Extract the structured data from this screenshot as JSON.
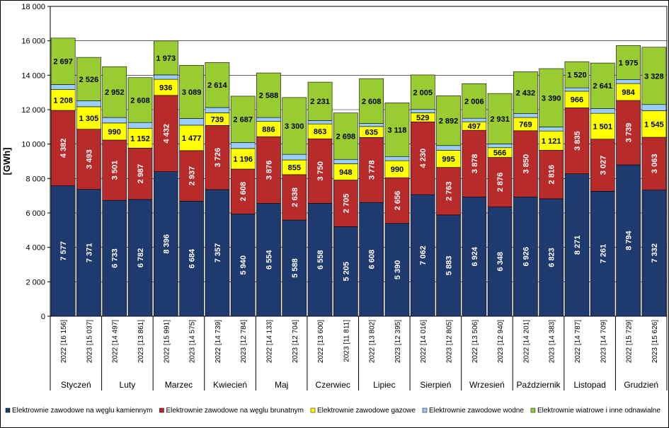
{
  "chart_data": {
    "type": "bar",
    "stacked": true,
    "ylabel": "[GWh]",
    "ylim": [
      0,
      18000
    ],
    "yticks": [
      "0",
      "2 000",
      "4 000",
      "6 000",
      "8 000",
      "10 000",
      "12 000",
      "14 000",
      "16 000",
      "18 000"
    ],
    "grid": true,
    "legend_position": "bottom",
    "months": [
      "Styczeń",
      "Luty",
      "Marzec",
      "Kwiecień",
      "Maj",
      "Czerwiec",
      "Lipiec",
      "Sierpień",
      "Wrzesień",
      "Październik",
      "Listopad",
      "Grudzień"
    ],
    "categories": [
      "2022 [16 156]",
      "2023 [15 037]",
      "2022 [14 497]",
      "2023 [13 861]",
      "2022 [15 991]",
      "2023 [14 575]",
      "2022 [14 739]",
      "2023 [12 784]",
      "2022 [14 133]",
      "2023 [12 704]",
      "2022 [13 600]",
      "2023 [11 811]",
      "2022 [13 802]",
      "2023 [12 395]",
      "2022 [14 016]",
      "2023 [12 805]",
      "2022 [13 506]",
      "2023 [12 940]",
      "2022 [14 201]",
      "2023 [14 383]",
      "2022 [14 787]",
      "2023 [14 709]",
      "2022 [15 729]",
      "2023 [15 626]"
    ],
    "series": [
      {
        "name": "Elektrownie zawodowe na węglu kamiennym",
        "color": "#1f3a6e",
        "label_color": "#ffffff",
        "values": [
          7577,
          7371,
          6733,
          6782,
          8396,
          6684,
          7357,
          5940,
          6554,
          5588,
          6558,
          5205,
          6608,
          5390,
          7062,
          5883,
          6924,
          6348,
          6926,
          6823,
          8271,
          7261,
          8794,
          7332
        ],
        "labels": [
          "7 577",
          "7 371",
          "6 733",
          "6 782",
          "8 396",
          "6 684",
          "7 357",
          "5 940",
          "6 554",
          "5 588",
          "6 558",
          "5 205",
          "6 608",
          "5 390",
          "7 062",
          "5 883",
          "6 924",
          "6 348",
          "6 926",
          "6 823",
          "8 271",
          "7 261",
          "8 794",
          "7 332"
        ]
      },
      {
        "name": "Elektrownie zawodowe na węglu brunatnym",
        "color": "#b82b2b",
        "label_color": "#ffffff",
        "values": [
          4382,
          3493,
          3501,
          2987,
          4432,
          2937,
          3726,
          2608,
          3876,
          2638,
          3750,
          2705,
          3778,
          2656,
          4230,
          2763,
          3878,
          2876,
          3850,
          2816,
          3835,
          3027,
          3739,
          3063
        ],
        "labels": [
          "4 382",
          "3 493",
          "3 501",
          "2 987",
          "4 432",
          "2 937",
          "3 726",
          "2 608",
          "3 876",
          "2 638",
          "3 750",
          "2 705",
          "3 778",
          "2 656",
          "4 230",
          "2 763",
          "3 878",
          "2 876",
          "3 850",
          "2 816",
          "3 835",
          "3 027",
          "3 739",
          "3 063"
        ]
      },
      {
        "name": "Elektrownie zawodowe gazowe",
        "color": "#ffff00",
        "label_color": "#000000",
        "values": [
          1208,
          1305,
          990,
          1152,
          936,
          1477,
          739,
          1196,
          886,
          855,
          863,
          948,
          635,
          990,
          529,
          995,
          497,
          566,
          769,
          1121,
          966,
          1501,
          984,
          1545
        ],
        "labels": [
          "1 208",
          "1 305",
          "990",
          "1 152",
          "936",
          "1 477",
          "739",
          "1 196",
          "886",
          "855",
          "863",
          "948",
          "635",
          "990",
          "529",
          "995",
          "497",
          "566",
          "769",
          "1 121",
          "966",
          "1 501",
          "984",
          "1 545"
        ]
      },
      {
        "name": "Elektrownie zawodowe wodne",
        "color": "#99ccff",
        "label_color": "#000000",
        "values": [
          292,
          342,
          321,
          332,
          254,
          388,
          303,
          353,
          229,
          323,
          198,
          255,
          173,
          241,
          190,
          272,
          201,
          219,
          224,
          233,
          195,
          279,
          237,
          358
        ],
        "labels": []
      },
      {
        "name": "Elektrownie wiatrowe i inne odnawialne",
        "color": "#99cc33",
        "label_color": "#000000",
        "values": [
          2697,
          2526,
          2952,
          2608,
          1973,
          3089,
          2614,
          2687,
          2588,
          3300,
          2231,
          2698,
          2608,
          3118,
          2005,
          2892,
          2006,
          2931,
          2432,
          3390,
          1520,
          2641,
          1975,
          3328
        ],
        "labels": [
          "2 697",
          "2 526",
          "2 952",
          "2 608",
          "1 973",
          "3 089",
          "2 614",
          "2 687",
          "2 588",
          "3 300",
          "2 231",
          "2 698",
          "2 608",
          "3 118",
          "2 005",
          "2 892",
          "2 006",
          "2 931",
          "2 432",
          "3 390",
          "1 520",
          "2 641",
          "1 975",
          "3 328"
        ]
      }
    ]
  }
}
